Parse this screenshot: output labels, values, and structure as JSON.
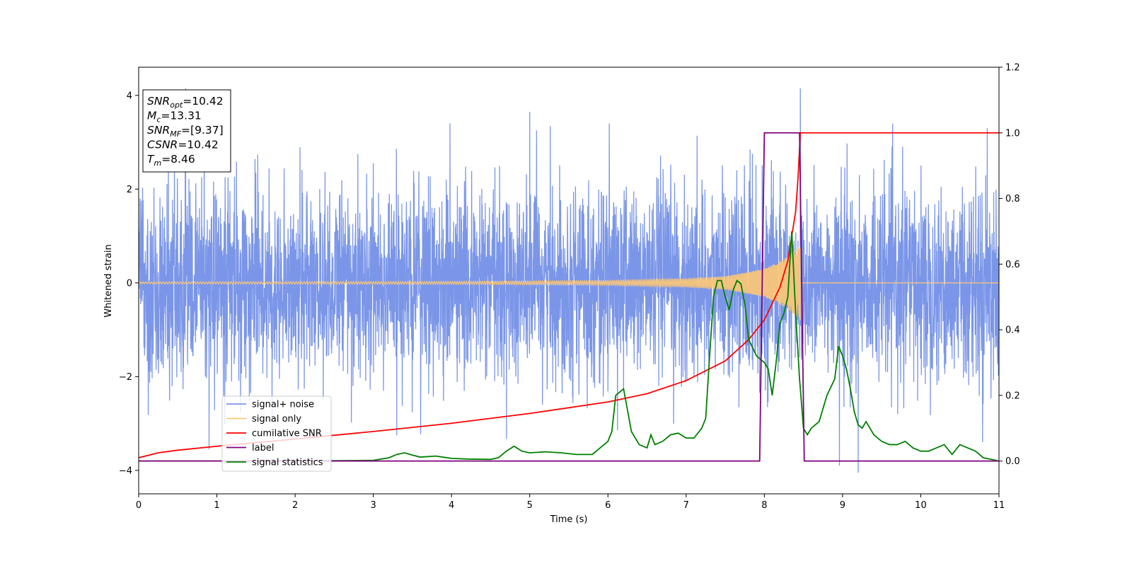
{
  "chart_data": {
    "type": "line",
    "xlabel": "Time (s)",
    "ylabel": "Whitened strain",
    "xlim": [
      0,
      11
    ],
    "ylim": [
      -4.5,
      4.6
    ],
    "y2lim": [
      -0.1,
      1.2
    ],
    "x_ticks": [
      "0",
      "1",
      "2",
      "3",
      "4",
      "5",
      "6",
      "7",
      "8",
      "9",
      "10",
      "11"
    ],
    "y_ticks": [
      "−4",
      "−2",
      "0",
      "2",
      "4"
    ],
    "y2_ticks": [
      "0.0",
      "0.2",
      "0.4",
      "0.6",
      "0.8",
      "1.0",
      "1.2"
    ],
    "grid": false,
    "legend_position": "lower-left",
    "info_box": {
      "lines": [
        {
          "base": "SNR",
          "sub": "opt",
          "rest": "=10.42"
        },
        {
          "base": "M",
          "sub": "c",
          "rest": "=13.31"
        },
        {
          "base": "SNR",
          "sub": "MF",
          "rest": "=[9.37]"
        },
        {
          "base": "CSNR",
          "sub": "",
          "rest": "=10.42"
        },
        {
          "base": "T",
          "sub": "m",
          "rest": "=8.46"
        }
      ]
    },
    "series": [
      {
        "name": "signal+ noise",
        "color": "#7b96e8",
        "axis": "left",
        "description": "whitened noisy strain, approx. gaussian with sigma ~1, peaks to ~4.2",
        "noise_sigma": 1.0,
        "notable_peaks": [
          [
            0.6,
            4.15
          ],
          [
            5.0,
            3.65
          ],
          [
            8.46,
            4.15
          ],
          [
            10.85,
            3.3
          ],
          [
            0.9,
            -3.55
          ],
          [
            9.2,
            -4.05
          ],
          [
            8.96,
            -3.9
          ],
          [
            3.3,
            -3.25
          ]
        ]
      },
      {
        "name": "signal only",
        "color": "#ffc874",
        "axis": "left",
        "description": "chirp signal, amplitude growing until merger at T_m",
        "merger_time": 8.46,
        "amplitude_envelope": [
          [
            0.0,
            0.02
          ],
          [
            4.0,
            0.03
          ],
          [
            6.0,
            0.05
          ],
          [
            7.0,
            0.09
          ],
          [
            7.5,
            0.14
          ],
          [
            8.0,
            0.3
          ],
          [
            8.3,
            0.55
          ],
          [
            8.46,
            0.8
          ],
          [
            8.47,
            0.0
          ],
          [
            11.0,
            0.0
          ]
        ]
      },
      {
        "name": "cumilative SNR",
        "color": "#ff0000",
        "axis": "right",
        "x": [
          0.0,
          0.25,
          0.5,
          1.0,
          2.0,
          3.0,
          4.0,
          5.0,
          6.0,
          6.5,
          7.0,
          7.5,
          7.8,
          8.0,
          8.2,
          8.3,
          8.4,
          8.43,
          8.46,
          8.47,
          11.0
        ],
        "y": [
          0.01,
          0.025,
          0.033,
          0.045,
          0.067,
          0.09,
          0.115,
          0.145,
          0.18,
          0.205,
          0.245,
          0.305,
          0.37,
          0.43,
          0.53,
          0.61,
          0.76,
          0.86,
          1.0,
          1.0,
          1.0
        ]
      },
      {
        "name": "label",
        "color": "#800080",
        "axis": "right",
        "x": [
          0.0,
          7.94,
          8.0,
          8.45,
          8.51,
          11.0
        ],
        "y": [
          0.0,
          0.0,
          1.0,
          1.0,
          0.0,
          0.0
        ]
      },
      {
        "name": "signal statistics",
        "color": "#008000",
        "axis": "right",
        "x": [
          0.0,
          2.0,
          3.0,
          3.2,
          3.3,
          3.4,
          3.5,
          3.6,
          3.8,
          4.0,
          4.2,
          4.5,
          4.6,
          4.7,
          4.8,
          4.9,
          5.0,
          5.2,
          5.4,
          5.6,
          5.8,
          5.9,
          6.0,
          6.05,
          6.1,
          6.2,
          6.3,
          6.4,
          6.5,
          6.55,
          6.6,
          6.7,
          6.8,
          6.9,
          7.0,
          7.1,
          7.2,
          7.25,
          7.3,
          7.35,
          7.4,
          7.45,
          7.5,
          7.55,
          7.6,
          7.65,
          7.7,
          7.75,
          7.8,
          7.9,
          8.0,
          8.05,
          8.1,
          8.15,
          8.2,
          8.25,
          8.3,
          8.35,
          8.4,
          8.45,
          8.5,
          8.55,
          8.6,
          8.7,
          8.8,
          8.9,
          8.95,
          9.0,
          9.05,
          9.1,
          9.15,
          9.2,
          9.25,
          9.3,
          9.4,
          9.5,
          9.6,
          9.7,
          9.8,
          9.9,
          10.0,
          10.1,
          10.2,
          10.3,
          10.4,
          10.5,
          10.6,
          10.7,
          10.8,
          10.9,
          11.0
        ],
        "y": [
          0.0,
          0.0,
          0.002,
          0.01,
          0.02,
          0.025,
          0.018,
          0.012,
          0.015,
          0.008,
          0.006,
          0.005,
          0.01,
          0.03,
          0.045,
          0.03,
          0.025,
          0.028,
          0.025,
          0.02,
          0.02,
          0.04,
          0.06,
          0.09,
          0.2,
          0.22,
          0.09,
          0.05,
          0.04,
          0.08,
          0.05,
          0.06,
          0.08,
          0.085,
          0.07,
          0.07,
          0.1,
          0.13,
          0.32,
          0.5,
          0.55,
          0.55,
          0.5,
          0.46,
          0.52,
          0.55,
          0.54,
          0.48,
          0.37,
          0.32,
          0.3,
          0.28,
          0.2,
          0.3,
          0.42,
          0.45,
          0.5,
          0.7,
          0.45,
          0.25,
          0.1,
          0.08,
          0.1,
          0.12,
          0.2,
          0.25,
          0.35,
          0.32,
          0.28,
          0.22,
          0.15,
          0.11,
          0.1,
          0.12,
          0.08,
          0.06,
          0.05,
          0.05,
          0.06,
          0.04,
          0.03,
          0.03,
          0.04,
          0.05,
          0.02,
          0.05,
          0.04,
          0.03,
          0.01,
          0.005,
          0.0
        ]
      }
    ]
  }
}
